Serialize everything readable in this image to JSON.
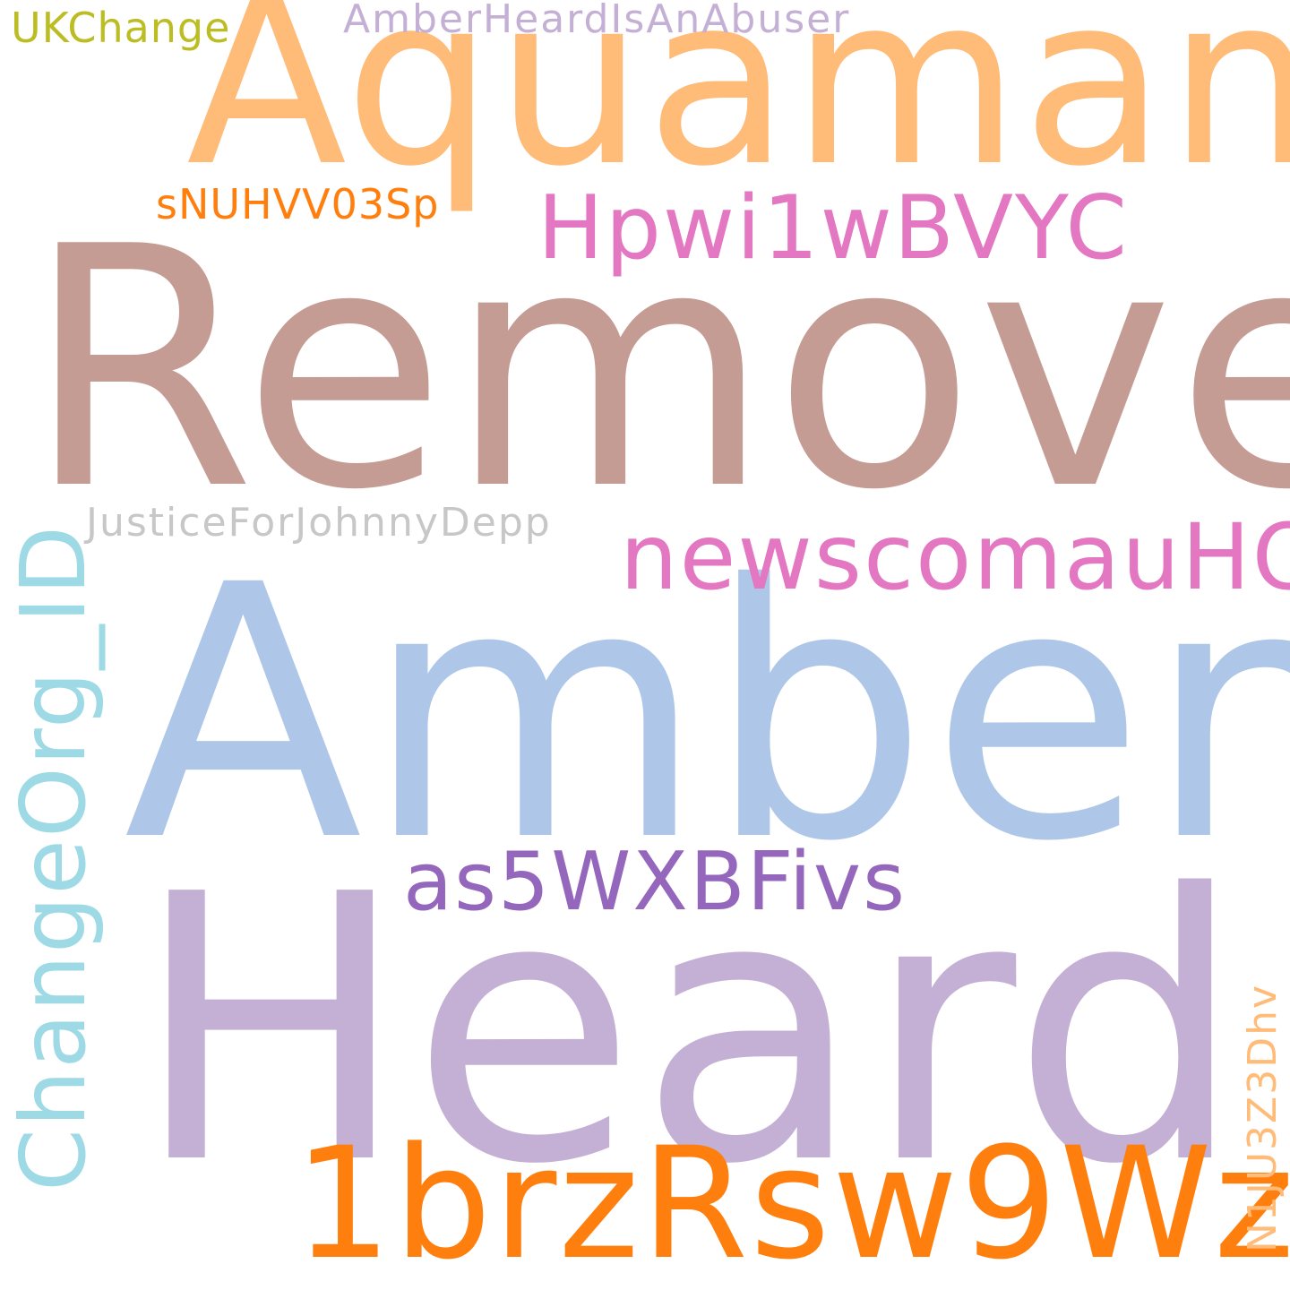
{
  "words": {
    "remove": {
      "text": "Remove",
      "color": "#c49c94"
    },
    "aquaman": {
      "text": "Aquaman",
      "color": "#ffbb78"
    },
    "amber": {
      "text": "Amber",
      "color": "#aec7e8"
    },
    "heard": {
      "text": "Heard",
      "color": "#c5b0d5"
    },
    "onebrz": {
      "text": "1brzRsw9Wz",
      "color": "#ff7f0e"
    },
    "as5wxb": {
      "text": "as5WXBFivs",
      "color": "#9467bd"
    },
    "newscomau": {
      "text": "newscomauHQ",
      "color": "#e377c2"
    },
    "hpwi": {
      "text": "Hpwi1wBVYC",
      "color": "#e377c2"
    },
    "snuh": {
      "text": "sNUHVV03Sp",
      "color": "#ff7f0e"
    },
    "ukchange": {
      "text": "UKChange",
      "color": "#bcbd22"
    },
    "amberheardabuser": {
      "text": "AmberHeardIsAnAbuser",
      "color": "#c5b0d5"
    },
    "justice": {
      "text": "JusticeForJohnnyDepp",
      "color": "#c7c7c7"
    },
    "changeorg": {
      "text": "ChangeOrg_ID",
      "color": "#9edae5"
    },
    "n1ju": {
      "text": "N1JU3Z3Dhv",
      "color": "#ffbb78"
    }
  }
}
